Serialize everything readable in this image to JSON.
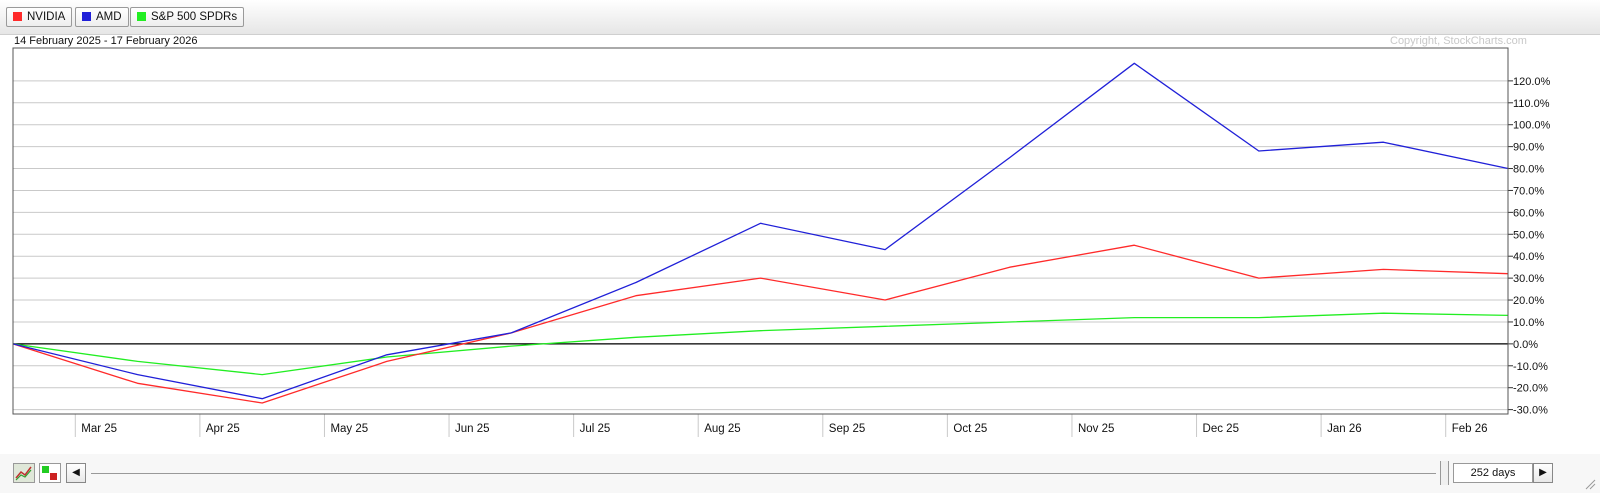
{
  "legend": [
    {
      "label": "NVIDIA",
      "color": "#ff2a2a"
    },
    {
      "label": "AMD",
      "color": "#2020d8"
    },
    {
      "label": "S&P 500 SPDRs",
      "color": "#22ee22"
    }
  ],
  "date_range": "14 February 2025 - 17 February 2026",
  "copyright": "Copyright, StockCharts.com",
  "days_label": "252 days",
  "nav": {
    "left": "◀",
    "right": "▶"
  },
  "chart_data": {
    "type": "line",
    "x": [
      "Feb 25",
      "Mar 25",
      "Apr 25",
      "May 25",
      "Jun 25",
      "Jul 25",
      "Aug 25",
      "Sep 25",
      "Oct 25",
      "Nov 25",
      "Dec 25",
      "Jan 26",
      "Feb 26"
    ],
    "x_ticks": [
      "Mar 25",
      "Apr 25",
      "May 25",
      "Jun 25",
      "Jul 25",
      "Aug 25",
      "Sep 25",
      "Oct 25",
      "Nov 25",
      "Dec 25",
      "Jan 26",
      "Feb 26"
    ],
    "y_ticks": [
      "120.0%",
      "110.0%",
      "100.0%",
      "90.0%",
      "80.0%",
      "70.0%",
      "60.0%",
      "50.0%",
      "40.0%",
      "30.0%",
      "20.0%",
      "10.0%",
      "0.0%",
      "-10.0%",
      "-20.0%",
      "-30.0%"
    ],
    "ylim": [
      -32,
      135
    ],
    "grid": true,
    "legend_position": "top-left",
    "series": [
      {
        "name": "NVIDIA",
        "color": "#ff2a2a",
        "values": [
          0,
          -18,
          -27,
          -8,
          5,
          22,
          30,
          20,
          35,
          45,
          30,
          34,
          32
        ]
      },
      {
        "name": "AMD",
        "color": "#2020d8",
        "values": [
          0,
          -14,
          -25,
          -5,
          5,
          28,
          55,
          43,
          85,
          128,
          88,
          92,
          80
        ]
      },
      {
        "name": "S&P 500 SPDRs",
        "color": "#22ee22",
        "values": [
          0,
          -8,
          -14,
          -6,
          -1,
          3,
          6,
          8,
          10,
          12,
          12,
          14,
          13
        ]
      }
    ]
  }
}
